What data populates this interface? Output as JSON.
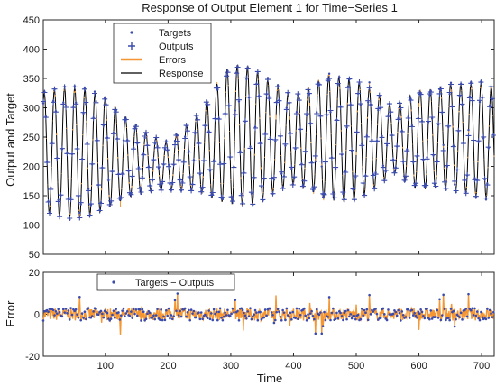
{
  "chart_data": [
    {
      "type": "line",
      "title": "Response of Output Element 1 for Time−Series 1",
      "xlabel": "",
      "ylabel": "Output and Target",
      "xlim": [
        1,
        720
      ],
      "ylim": [
        50,
        450
      ],
      "yticks": [
        50,
        100,
        150,
        200,
        250,
        300,
        350,
        400,
        450
      ],
      "xticks": [
        100,
        200,
        300,
        400,
        500,
        600,
        700
      ],
      "grid": false,
      "legend_position": "top-left",
      "series": [
        {
          "name": "Targets",
          "style": "points",
          "color": "#3b4bab"
        },
        {
          "name": "Outputs",
          "style": "plus markers",
          "color": "#3b4bab"
        },
        {
          "name": "Errors",
          "style": "line",
          "color": "#f39633"
        },
        {
          "name": "Response",
          "style": "line",
          "color": "#000000"
        }
      ],
      "signal": {
        "description": "oscillating time series, period about 16 samples",
        "n_points": 720,
        "approx_amplitude_by_time": {
          "x": [
            1,
            100,
            200,
            250,
            300,
            340,
            400,
            450,
            500,
            560,
            600,
            650,
            700,
            720
          ],
          "center": [
            225,
            222,
            200,
            225,
            255,
            250,
            245,
            250,
            245,
            245,
            245,
            250,
            245,
            240
          ],
          "half_range": [
            120,
            105,
            55,
            75,
            120,
            130,
            110,
            135,
            105,
            60,
            110,
            130,
            115,
            100
          ]
        }
      }
    },
    {
      "type": "line",
      "title": "",
      "xlabel": "Time",
      "ylabel": "Error",
      "xlim": [
        1,
        720
      ],
      "ylim": [
        -20,
        20
      ],
      "yticks": [
        -20,
        0,
        20
      ],
      "xticks": [
        100,
        200,
        300,
        400,
        500,
        600,
        700
      ],
      "grid": false,
      "legend_position": "top-left",
      "series": [
        {
          "name": "Targets − Outputs",
          "style": "line with point markers",
          "line_color": "#f39633",
          "marker_color": "#3b4bab"
        }
      ],
      "signal": {
        "description": "errors fluctuating around 0, mostly within about ±5, occasional spikes near ±10",
        "n_points": 720
      }
    }
  ],
  "colors": {
    "marker": "#3b4bab",
    "errors": "#f39633",
    "response": "#000000"
  }
}
